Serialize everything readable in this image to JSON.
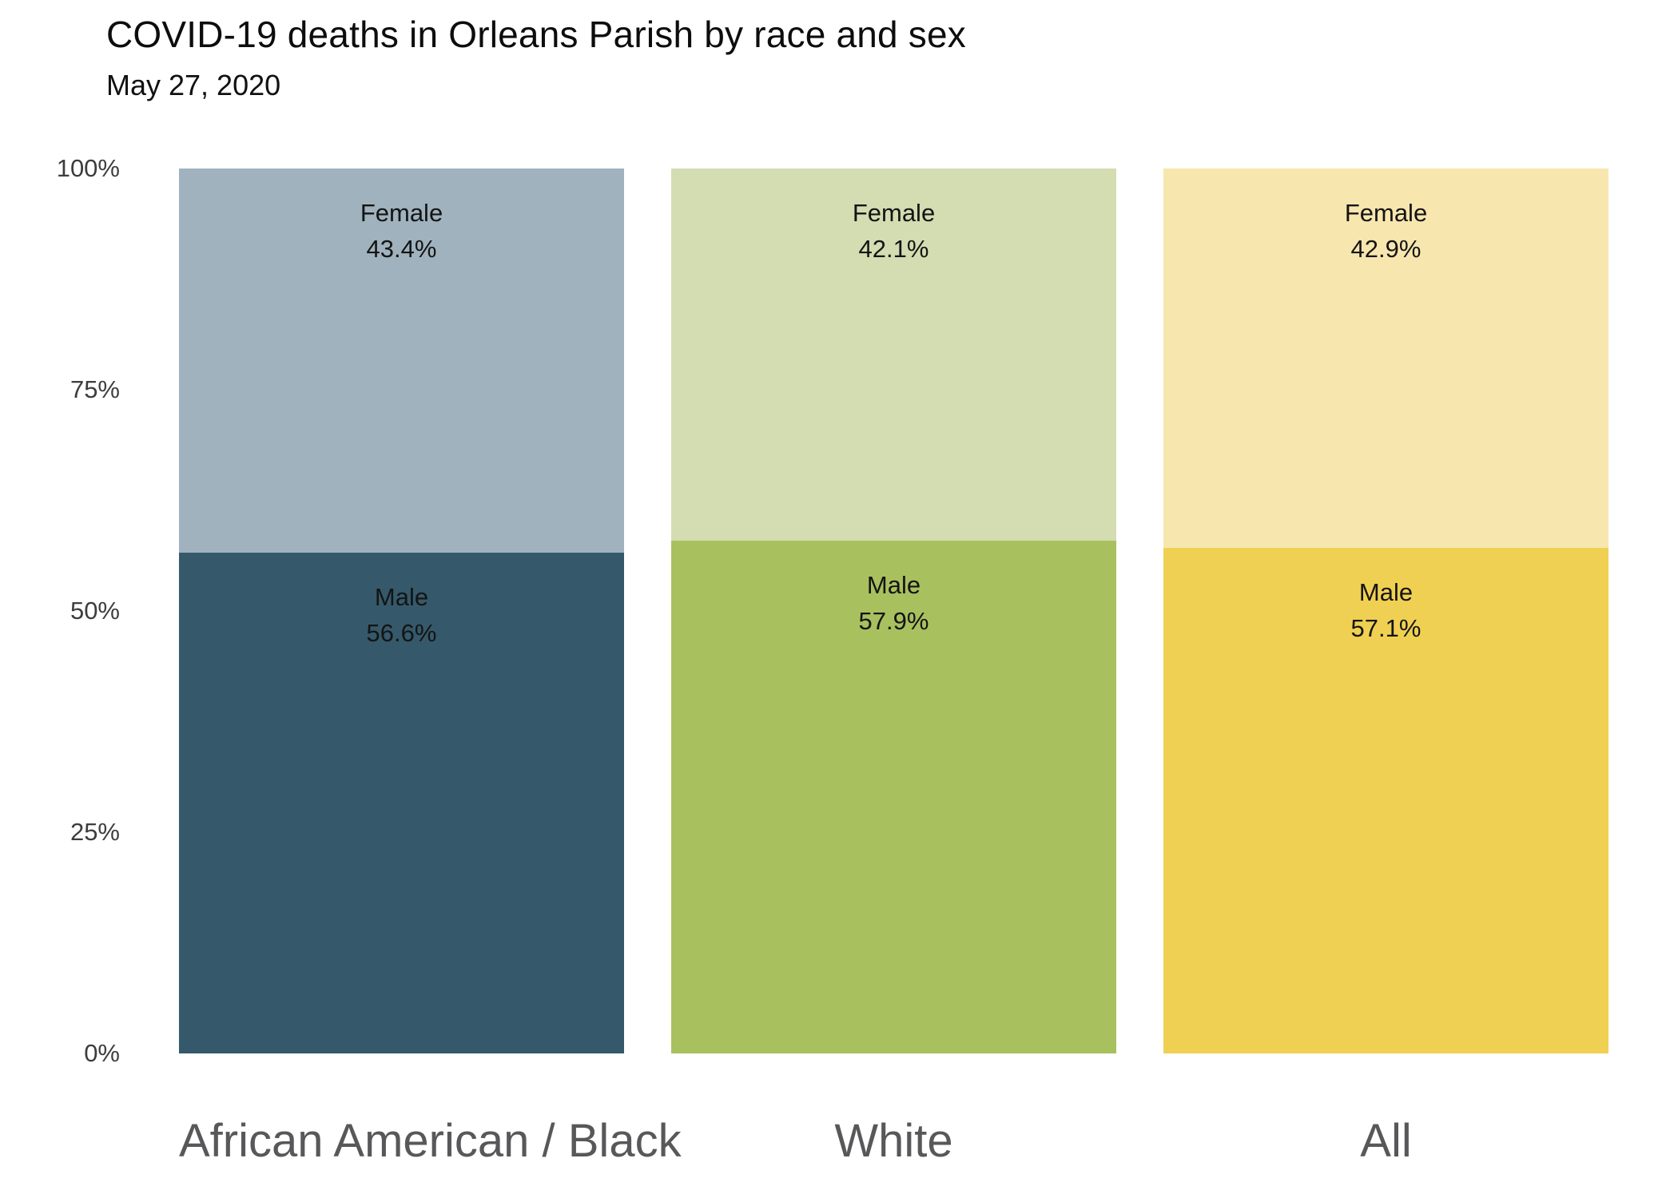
{
  "chart_data": {
    "type": "bar",
    "subtype": "stacked-percentage",
    "title": "COVID-19 deaths in Orleans Parish by race and sex",
    "subtitle": "May 27, 2020",
    "ylim": [
      0,
      100
    ],
    "y_ticks": [
      {
        "label": "100%",
        "value": 100
      },
      {
        "label": "75%",
        "value": 75
      },
      {
        "label": "50%",
        "value": 50
      },
      {
        "label": "25%",
        "value": 25
      },
      {
        "label": "0%",
        "value": 0
      }
    ],
    "categories": [
      "African American / Black",
      "White",
      "All"
    ],
    "series": [
      {
        "name": "Male",
        "values": [
          56.6,
          57.9,
          57.1
        ]
      },
      {
        "name": "Female",
        "values": [
          43.4,
          42.1,
          42.9
        ]
      }
    ],
    "bars": [
      {
        "category": "African American / Black",
        "segments": [
          {
            "label": "Female",
            "value": 43.4,
            "display": "43.4%",
            "color": "#9fb2be"
          },
          {
            "label": "Male",
            "value": 56.6,
            "display": "56.6%",
            "color": "#35596b"
          }
        ]
      },
      {
        "category": "White",
        "segments": [
          {
            "label": "Female",
            "value": 42.1,
            "display": "42.1%",
            "color": "#d4dcb2"
          },
          {
            "label": "Male",
            "value": 57.9,
            "display": "57.9%",
            "color": "#a9c05f"
          }
        ]
      },
      {
        "category": "All",
        "segments": [
          {
            "label": "Female",
            "value": 42.9,
            "display": "42.9%",
            "color": "#f7e6ae"
          },
          {
            "label": "Male",
            "value": 57.1,
            "display": "57.1%",
            "color": "#f0d052"
          }
        ]
      }
    ]
  }
}
